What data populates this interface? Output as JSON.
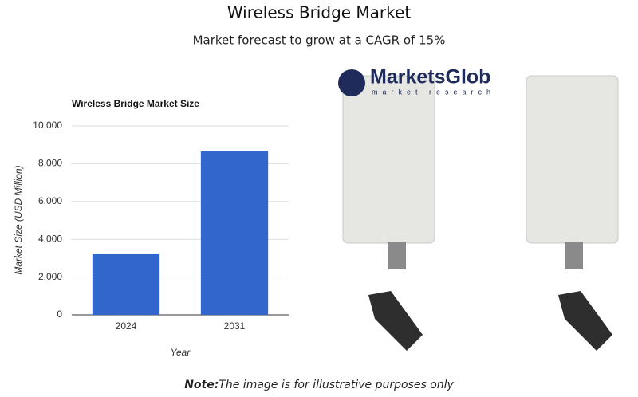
{
  "header": {
    "title": "Wireless Bridge Market",
    "subtitle": "Market forecast to grow at a CAGR of 15%"
  },
  "chart_data": {
    "type": "bar",
    "title": "Wireless Bridge Market Size",
    "categories": [
      "2024",
      "2031"
    ],
    "values": [
      3250,
      8650
    ],
    "color": "#3366cc",
    "x_label": "Year",
    "y_label": "Market Size (USD Million)",
    "ylim": [
      0,
      10000
    ],
    "yticks": [
      0,
      {
        "value": 2000,
        "label": "2,000"
      },
      {
        "value": 4000,
        "label": "4,000"
      },
      {
        "value": 6000,
        "label": "6,000"
      },
      {
        "value": 8000,
        "label": "8,000"
      },
      {
        "value": 10000,
        "label": "10,000"
      }
    ],
    "grid": true
  },
  "logo": {
    "name": "MarketsGlob",
    "tagline": "market research"
  },
  "note": {
    "label": "Note:",
    "text": "The image is for illustrative purposes only"
  }
}
